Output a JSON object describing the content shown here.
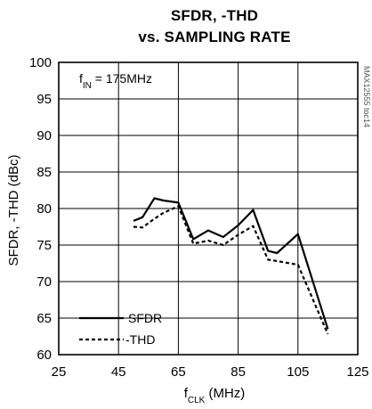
{
  "chart_data": {
    "type": "line",
    "title_line1": "SFDR, -THD",
    "title_line2": "vs. SAMPLING RATE",
    "ylabel": "SFDR, -THD (dBc)",
    "xlabel_main": "f",
    "xlabel_sub": "CLK",
    "xlabel_unit": " (MHz)",
    "xlim": [
      25,
      125
    ],
    "ylim": [
      60,
      100
    ],
    "x_ticks": [
      25,
      45,
      65,
      85,
      105,
      125
    ],
    "y_ticks": [
      60,
      65,
      70,
      75,
      80,
      85,
      90,
      95,
      100
    ],
    "grid": true,
    "annotation_main": "f",
    "annotation_sub": "IN",
    "annotation_rest": " = 175MHz",
    "watermark": "MAX12555 toc14",
    "legend_position": "bottom-left",
    "series": [
      {
        "name": "SFDR",
        "style": "solid",
        "x": [
          50,
          53,
          57,
          60,
          65,
          70,
          75,
          80,
          85,
          90,
          95,
          98,
          105,
          115
        ],
        "y": [
          78.3,
          78.8,
          81.4,
          81.1,
          80.8,
          75.8,
          77.0,
          76.1,
          77.7,
          79.8,
          74.2,
          73.9,
          76.5,
          63.5
        ]
      },
      {
        "name": "-THD",
        "style": "dashed",
        "x": [
          50,
          53,
          57,
          60,
          65,
          70,
          75,
          80,
          85,
          90,
          95,
          98,
          105,
          115
        ],
        "y": [
          77.5,
          77.4,
          78.6,
          79.4,
          80.3,
          75.2,
          75.6,
          75.0,
          76.4,
          77.6,
          73.0,
          72.8,
          72.3,
          62.8
        ]
      }
    ]
  }
}
